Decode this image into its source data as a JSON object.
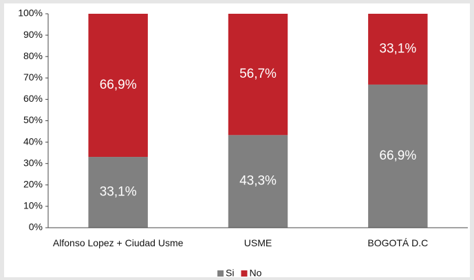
{
  "chart_data": {
    "type": "stacked_bar",
    "categories": [
      "Alfonso Lopez + Ciudad Usme",
      "USME",
      "BOGOTÁ D.C"
    ],
    "series": [
      {
        "name": "Si",
        "color": "#808080",
        "values": [
          33.1,
          43.3,
          66.9
        ],
        "value_labels": [
          "33,1%",
          "43,3%",
          "66,9%"
        ]
      },
      {
        "name": "No",
        "color": "#c0232b",
        "values": [
          66.9,
          56.7,
          33.1
        ],
        "value_labels": [
          "66,9%",
          "56,7%",
          "33,1%"
        ]
      }
    ],
    "ylim": [
      0,
      100
    ],
    "yticks": [
      {
        "value": 0,
        "label": "0%"
      },
      {
        "value": 10,
        "label": "10%"
      },
      {
        "value": 20,
        "label": "20%"
      },
      {
        "value": 30,
        "label": "30%"
      },
      {
        "value": 40,
        "label": "40%"
      },
      {
        "value": 50,
        "label": "50%"
      },
      {
        "value": 60,
        "label": "60%"
      },
      {
        "value": 70,
        "label": "70%"
      },
      {
        "value": 80,
        "label": "80%"
      },
      {
        "value": 90,
        "label": "90%"
      },
      {
        "value": 100,
        "label": "100%"
      }
    ],
    "legend": "bottom"
  }
}
